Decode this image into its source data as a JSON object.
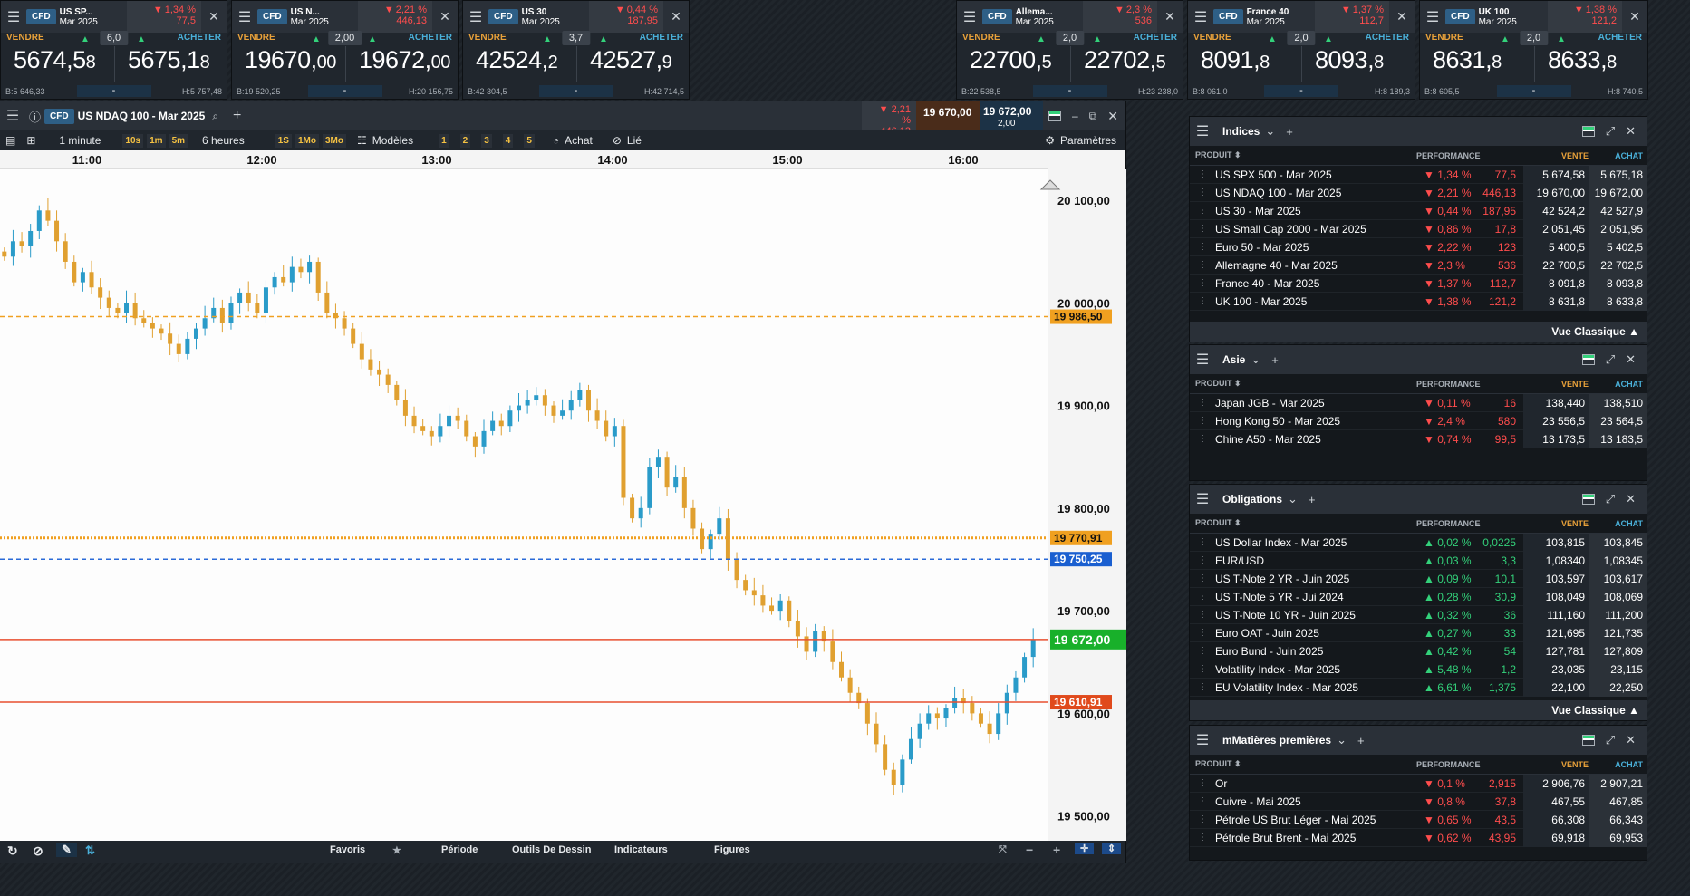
{
  "tiles": [
    {
      "badge": "CFD",
      "name": "US SP...",
      "contract": "Mar 2025",
      "perf": "1,34 %",
      "chg": "77,5",
      "spread": "6,0",
      "sell_big": "5674,5",
      "sell_small": "8",
      "buy_big": "5675,1",
      "buy_small": "8",
      "low": "B:5 646,33",
      "high": "H:5 757,48",
      "qty": "-"
    },
    {
      "badge": "CFD",
      "name": "US N...",
      "contract": "Mar 2025",
      "perf": "2,21 %",
      "chg": "446,13",
      "spread": "2,00",
      "sell_big": "19670,",
      "sell_small": "00",
      "buy_big": "19672,",
      "buy_small": "00",
      "low": "B:19 520,25",
      "high": "H:20 156,75",
      "qty": "-"
    },
    {
      "badge": "CFD",
      "name": "US 30",
      "contract": "Mar 2025",
      "perf": "0,44 %",
      "chg": "187,95",
      "spread": "3,7",
      "sell_big": "42524,",
      "sell_small": "2",
      "buy_big": "42527,",
      "buy_small": "9",
      "low": "B:42 304,5",
      "high": "H:42 714,5",
      "qty": "-"
    },
    {
      "badge": "CFD",
      "name": "Allema...",
      "contract": "Mar 2025",
      "perf": "2,3 %",
      "chg": "536",
      "spread": "2,0",
      "sell_big": "22700,",
      "sell_small": "5",
      "buy_big": "22702,",
      "buy_small": "5",
      "low": "B:22 538,5",
      "high": "H:23 238,0",
      "qty": "-"
    },
    {
      "badge": "CFD",
      "name": "France 40",
      "contract": "Mar 2025",
      "perf": "1,37 %",
      "chg": "112,7",
      "spread": "2,0",
      "sell_big": "8091,",
      "sell_small": "8",
      "buy_big": "8093,",
      "buy_small": "8",
      "low": "B:8 061,0",
      "high": "H:8 189,3",
      "qty": "-"
    },
    {
      "badge": "CFD",
      "name": "UK 100",
      "contract": "Mar 2025",
      "perf": "1,38 %",
      "chg": "121,2",
      "spread": "2,0",
      "sell_big": "8631,",
      "sell_small": "8",
      "buy_big": "8633,",
      "buy_small": "8",
      "low": "B:8 605,5",
      "high": "H:8 740,5",
      "qty": "-"
    }
  ],
  "labels": {
    "sell": "VENDRE",
    "buy": "ACHETER",
    "product": "PRODUIT",
    "performance": "PERFORMANCE",
    "vente": "VENTE",
    "achat": "ACHAT",
    "vue": "Vue Classique"
  },
  "chart": {
    "badge": "CFD",
    "title": "US NDAQ 100 - Mar 2025",
    "perf": "2,21 %",
    "chg": "446,13",
    "sell": "19 670,00",
    "buy": "19 672,00",
    "spread": "2,00",
    "toolbar": {
      "interval": "1 minute",
      "r1": "10s",
      "r2": "1m",
      "r3": "5m",
      "range": "6 heures",
      "p1": "1S",
      "p2": "1Mo",
      "p3": "3Mo",
      "models": "Modèles",
      "n1": "1",
      "n2": "2",
      "n3": "3",
      "n4": "4",
      "n5": "5",
      "buy": "Achat",
      "linked": "Lié",
      "settings": "Paramètres"
    },
    "times": [
      "11:00",
      "12:00",
      "13:00",
      "14:00",
      "15:00",
      "16:00"
    ],
    "bottom": {
      "fav": "Favoris",
      "period": "Période",
      "tools": "Outils De Dessin",
      "indicators": "Indicateurs",
      "figures": "Figures"
    }
  },
  "chart_data": {
    "type": "candlestick",
    "ylim": [
      19475,
      20130
    ],
    "yticks": [
      "20 100,00",
      "20 000,00",
      "19 900,00",
      "19 800,00",
      "19 700,00",
      "19 600,00",
      "19 500,00"
    ],
    "ytick_values": [
      20100,
      20000,
      19900,
      19800,
      19700,
      19600,
      19500
    ],
    "xticks": [
      "11:00",
      "12:00",
      "13:00",
      "14:00",
      "15:00",
      "16:00"
    ],
    "hlines": [
      {
        "value": 19986.5,
        "label": "19 986,50",
        "color": "#f0a020",
        "style": "dashed"
      },
      {
        "value": 19770.91,
        "label": "19 770,91",
        "color": "#f0a020",
        "style": "dotted"
      },
      {
        "value": 19750.25,
        "label": "19 750,25",
        "color": "#2a6ad8",
        "style": "dashed"
      },
      {
        "value": 19672.0,
        "label": "19 672,00",
        "color": "#e85030",
        "style": "solid",
        "labelcolor": "#18b02a"
      },
      {
        "value": 19610.91,
        "label": "19 610,91",
        "color": "#e85030",
        "style": "solid"
      }
    ],
    "closes": [
      20045,
      20060,
      20055,
      20070,
      20090,
      20080,
      20060,
      20040,
      20020,
      20030,
      20015,
      20005,
      19995,
      19990,
      20000,
      19985,
      19980,
      19975,
      19970,
      19960,
      19950,
      19965,
      19975,
      19985,
      19995,
      19980,
      20000,
      20010,
      20000,
      19990,
      20015,
      20025,
      20020,
      20035,
      20030,
      20040,
      20010,
      19990,
      19985,
      19975,
      19960,
      19945,
      19935,
      19930,
      19920,
      19905,
      19890,
      19880,
      19875,
      19870,
      19880,
      19890,
      19885,
      19870,
      19860,
      19875,
      19885,
      19880,
      19895,
      19900,
      19905,
      19910,
      19900,
      19890,
      19895,
      19905,
      19915,
      19895,
      19885,
      19870,
      19880,
      19810,
      19790,
      19800,
      19840,
      19850,
      19820,
      19830,
      19800,
      19780,
      19760,
      19775,
      19790,
      19750,
      19730,
      19720,
      19715,
      19705,
      19700,
      19710,
      19690,
      19675,
      19660,
      19680,
      19670,
      19650,
      19635,
      19620,
      19610,
      19590,
      19570,
      19545,
      19530,
      19555,
      19575,
      19590,
      19600,
      19595,
      19605,
      19615,
      19610,
      19600,
      19590,
      19580,
      19600,
      19620,
      19635,
      19655,
      19672
    ]
  },
  "panels": [
    {
      "name": "Indices",
      "rows": [
        {
          "name": "US SPX 500 - Mar 2025",
          "dir": "down",
          "pct": "1,34 %",
          "chg": "77,5",
          "sell": "5 674,58",
          "buy": "5 675,18"
        },
        {
          "name": "US NDAQ 100 - Mar 2025",
          "dir": "down",
          "pct": "2,21 %",
          "chg": "446,13",
          "sell": "19 670,00",
          "buy": "19 672,00"
        },
        {
          "name": "US 30 - Mar 2025",
          "dir": "down",
          "pct": "0,44 %",
          "chg": "187,95",
          "sell": "42 524,2",
          "buy": "42 527,9"
        },
        {
          "name": "US Small Cap 2000 - Mar 2025",
          "dir": "down",
          "pct": "0,86 %",
          "chg": "17,8",
          "sell": "2 051,45",
          "buy": "2 051,95"
        },
        {
          "name": "Euro 50 - Mar 2025",
          "dir": "down",
          "pct": "2,22 %",
          "chg": "123",
          "sell": "5 400,5",
          "buy": "5 402,5"
        },
        {
          "name": "Allemagne 40 - Mar 2025",
          "dir": "down",
          "pct": "2,3 %",
          "chg": "536",
          "sell": "22 700,5",
          "buy": "22 702,5"
        },
        {
          "name": "France 40 - Mar 2025",
          "dir": "down",
          "pct": "1,37 %",
          "chg": "112,7",
          "sell": "8 091,8",
          "buy": "8 093,8"
        },
        {
          "name": "UK 100 - Mar 2025",
          "dir": "down",
          "pct": "1,38 %",
          "chg": "121,2",
          "sell": "8 631,8",
          "buy": "8 633,8"
        }
      ]
    },
    {
      "name": "Asie",
      "rows": [
        {
          "name": "Japan JGB - Mar 2025",
          "dir": "down",
          "pct": "0,11 %",
          "chg": "16",
          "sell": "138,440",
          "buy": "138,510"
        },
        {
          "name": "Hong Kong 50 - Mar 2025",
          "dir": "down",
          "pct": "2,4 %",
          "chg": "580",
          "sell": "23 556,5",
          "buy": "23 564,5"
        },
        {
          "name": "Chine A50 - Mar 2025",
          "dir": "down",
          "pct": "0,74 %",
          "chg": "99,5",
          "sell": "13 173,5",
          "buy": "13 183,5"
        }
      ]
    },
    {
      "name": "Obligations",
      "rows": [
        {
          "name": "US Dollar Index - Mar 2025",
          "dir": "up",
          "pct": "0,02 %",
          "chg": "0,0225",
          "sell": "103,815",
          "buy": "103,845"
        },
        {
          "name": "EUR/USD",
          "dir": "up",
          "pct": "0,03 %",
          "chg": "3,3",
          "sell": "1,08340",
          "buy": "1,08345"
        },
        {
          "name": "US T-Note 2 YR - Juin 2025",
          "dir": "up",
          "pct": "0,09 %",
          "chg": "10,1",
          "sell": "103,597",
          "buy": "103,617"
        },
        {
          "name": "US T-Note 5 YR - Jui 2024",
          "dir": "up",
          "pct": "0,28 %",
          "chg": "30,9",
          "sell": "108,049",
          "buy": "108,069"
        },
        {
          "name": "US T-Note 10 YR - Juin 2025",
          "dir": "up",
          "pct": "0,32 %",
          "chg": "36",
          "sell": "111,160",
          "buy": "111,200"
        },
        {
          "name": "Euro OAT - Juin 2025",
          "dir": "up",
          "pct": "0,27 %",
          "chg": "33",
          "sell": "121,695",
          "buy": "121,735"
        },
        {
          "name": "Euro Bund - Juin 2025",
          "dir": "up",
          "pct": "0,42 %",
          "chg": "54",
          "sell": "127,781",
          "buy": "127,809"
        },
        {
          "name": "Volatility Index - Mar 2025",
          "dir": "up",
          "pct": "5,48 %",
          "chg": "1,2",
          "sell": "23,035",
          "buy": "23,115"
        },
        {
          "name": "EU Volatility Index - Mar 2025",
          "dir": "up",
          "pct": "6,61 %",
          "chg": "1,375",
          "sell": "22,100",
          "buy": "22,250"
        }
      ]
    },
    {
      "name": "mMatières premières",
      "rows": [
        {
          "name": "Or",
          "dir": "down",
          "pct": "0,1 %",
          "chg": "2,915",
          "sell": "2 906,76",
          "buy": "2 907,21"
        },
        {
          "name": "Cuivre - Mai 2025",
          "dir": "down",
          "pct": "0,8 %",
          "chg": "37,8",
          "sell": "467,55",
          "buy": "467,85"
        },
        {
          "name": "Pétrole US Brut Léger - Mai 2025",
          "dir": "down",
          "pct": "0,65 %",
          "chg": "43,5",
          "sell": "66,308",
          "buy": "66,343"
        },
        {
          "name": "Pétrole Brut Brent - Mai 2025",
          "dir": "down",
          "pct": "0,62 %",
          "chg": "43,95",
          "sell": "69,918",
          "buy": "69,953"
        }
      ]
    }
  ]
}
